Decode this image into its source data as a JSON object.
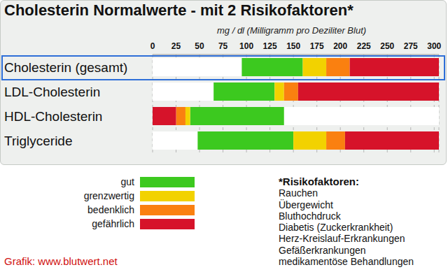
{
  "chart_data": {
    "type": "bar",
    "orientation": "horizontal",
    "title": "Cholesterin Normalwerte - mit 2 Risikofaktoren*",
    "x_label": "mg / dl (Milligramm pro Deziliter Blut)",
    "categories": [
      "Cholesterin (gesamt)",
      "LDL-Cholesterin",
      "HDL-Cholesterin",
      "Triglyceride"
    ],
    "series": [
      {
        "name": "gut",
        "color": "#3cc91f",
        "values": [
          [
            95,
            160
          ],
          [
            65,
            130
          ],
          [
            40,
            140
          ],
          [
            48,
            150
          ]
        ]
      },
      {
        "name": "grenzwertig",
        "color": "#f2d200",
        "values": [
          [
            160,
            185
          ],
          [
            130,
            140
          ],
          [
            35,
            40
          ],
          [
            150,
            185
          ]
        ]
      },
      {
        "name": "bedenklich",
        "color": "#fa8010",
        "values": [
          [
            185,
            210
          ],
          [
            140,
            155
          ],
          [
            25,
            35
          ],
          [
            185,
            205
          ]
        ]
      },
      {
        "name": "gefährlich",
        "color": "#d6132a",
        "values": [
          [
            210,
            305
          ],
          [
            155,
            305
          ],
          [
            0,
            25
          ],
          [
            205,
            305
          ]
        ]
      }
    ],
    "xlim": [
      0,
      305
    ],
    "xticks": [
      0,
      25,
      50,
      75,
      100,
      125,
      150,
      175,
      200,
      225,
      250,
      275,
      300
    ],
    "grid": true,
    "legend": "bottom",
    "notes": {
      "title": "*Risikofaktoren:",
      "items": [
        "Rauchen",
        "Übergewicht",
        "Bluthochdruck",
        "Diabetis (Zuckerkrankheit)",
        "Herz-Kreislauf-Erkrankungen",
        "Gefäßerkrankungen",
        "medikamentöse Behandlungen"
      ]
    },
    "source": "Grafik: www.blutwert.net"
  }
}
